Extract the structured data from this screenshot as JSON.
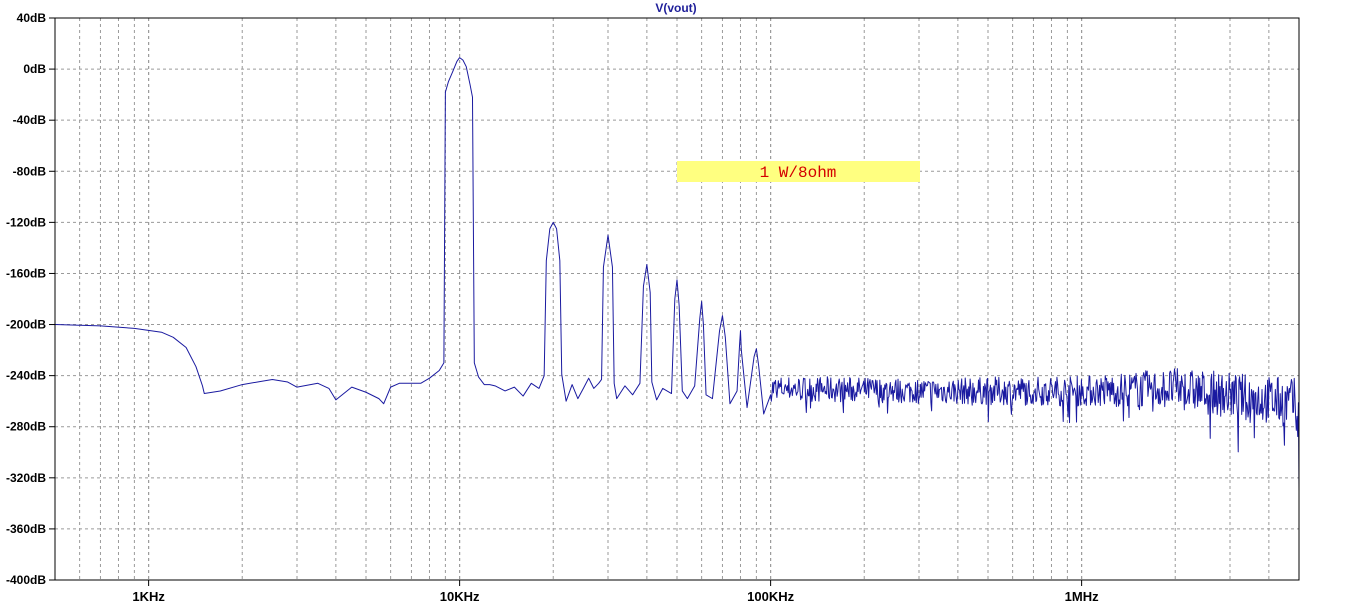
{
  "chart_data": {
    "type": "line",
    "title": "V(vout)",
    "xlabel": "",
    "ylabel": "",
    "x_scale": "log",
    "xlim": [
      500,
      5000000
    ],
    "ylim": [
      -400,
      40
    ],
    "grid": true,
    "y_ticks": [
      {
        "value": 40,
        "label": "40dB"
      },
      {
        "value": 0,
        "label": "0dB"
      },
      {
        "value": -40,
        "label": "-40dB"
      },
      {
        "value": -80,
        "label": "-80dB"
      },
      {
        "value": -120,
        "label": "-120dB"
      },
      {
        "value": -160,
        "label": "-160dB"
      },
      {
        "value": -200,
        "label": "-200dB"
      },
      {
        "value": -240,
        "label": "-240dB"
      },
      {
        "value": -280,
        "label": "-280dB"
      },
      {
        "value": -320,
        "label": "-320dB"
      },
      {
        "value": -360,
        "label": "-360dB"
      },
      {
        "value": -400,
        "label": "-400dB"
      }
    ],
    "x_ticks": [
      {
        "value": 1000,
        "label": "1KHz"
      },
      {
        "value": 10000,
        "label": "10KHz"
      },
      {
        "value": 100000,
        "label": "100KHz"
      },
      {
        "value": 1000000,
        "label": "1MHz"
      }
    ],
    "series": [
      {
        "color": "#1a1aa0",
        "points": [
          [
            500,
            -200
          ],
          [
            700,
            -201
          ],
          [
            900,
            -203
          ],
          [
            1100,
            -206
          ],
          [
            1200,
            -210
          ],
          [
            1320,
            -218
          ],
          [
            1420,
            -233
          ],
          [
            1490,
            -248
          ],
          [
            1510,
            -254
          ],
          [
            1700,
            -252
          ],
          [
            2000,
            -247
          ],
          [
            2500,
            -243
          ],
          [
            2800,
            -245
          ],
          [
            3000,
            -249
          ],
          [
            3500,
            -246
          ],
          [
            3800,
            -250
          ],
          [
            4000,
            -259
          ],
          [
            4500,
            -249
          ],
          [
            5000,
            -253
          ],
          [
            5500,
            -258
          ],
          [
            5700,
            -262
          ],
          [
            6000,
            -249
          ],
          [
            6400,
            -246
          ],
          [
            7000,
            -246
          ],
          [
            7500,
            -246
          ],
          [
            8000,
            -242
          ],
          [
            8600,
            -236
          ],
          [
            8900,
            -230
          ],
          [
            9000,
            -18
          ],
          [
            9200,
            -10
          ],
          [
            9500,
            -2
          ],
          [
            9800,
            6
          ],
          [
            10000,
            9
          ],
          [
            10250,
            7
          ],
          [
            10500,
            2
          ],
          [
            10800,
            -12
          ],
          [
            11000,
            -22
          ],
          [
            11150,
            -230
          ],
          [
            11500,
            -241
          ],
          [
            12000,
            -247
          ],
          [
            12500,
            -247
          ],
          [
            13000,
            -248
          ],
          [
            14000,
            -252
          ],
          [
            15000,
            -249
          ],
          [
            16000,
            -256
          ],
          [
            17000,
            -246
          ],
          [
            18000,
            -250
          ],
          [
            18700,
            -240
          ],
          [
            19000,
            -150
          ],
          [
            19500,
            -125
          ],
          [
            20000,
            -120
          ],
          [
            20500,
            -125
          ],
          [
            21000,
            -150
          ],
          [
            21300,
            -239
          ],
          [
            22000,
            -260
          ],
          [
            23000,
            -247
          ],
          [
            24000,
            -258
          ],
          [
            25000,
            -250
          ],
          [
            26000,
            -242
          ],
          [
            27000,
            -250
          ],
          [
            28000,
            -246
          ],
          [
            28600,
            -243
          ],
          [
            29000,
            -155
          ],
          [
            30000,
            -130
          ],
          [
            31000,
            -155
          ],
          [
            31400,
            -246
          ],
          [
            32000,
            -258
          ],
          [
            34000,
            -248
          ],
          [
            36000,
            -255
          ],
          [
            38000,
            -246
          ],
          [
            39000,
            -170
          ],
          [
            40000,
            -153
          ],
          [
            41000,
            -175
          ],
          [
            41500,
            -245
          ],
          [
            43000,
            -259
          ],
          [
            45000,
            -250
          ],
          [
            48000,
            -254
          ],
          [
            49200,
            -180
          ],
          [
            50000,
            -165
          ],
          [
            50800,
            -185
          ],
          [
            52000,
            -252
          ],
          [
            54000,
            -258
          ],
          [
            57000,
            -248
          ],
          [
            59200,
            -195
          ],
          [
            60000,
            -182
          ],
          [
            60800,
            -200
          ],
          [
            62000,
            -255
          ],
          [
            65000,
            -258
          ],
          [
            68500,
            -205
          ],
          [
            70000,
            -193
          ],
          [
            71500,
            -210
          ],
          [
            74000,
            -262
          ],
          [
            78000,
            -252
          ],
          [
            79500,
            -215
          ],
          [
            80000,
            -205
          ],
          [
            80500,
            -220
          ],
          [
            84000,
            -265
          ],
          [
            88500,
            -225
          ],
          [
            90000,
            -219
          ],
          [
            91500,
            -232
          ],
          [
            95000,
            -270
          ],
          [
            100000,
            -255
          ]
        ],
        "noise_band": [
          {
            "x": 100000,
            "y": -250,
            "spread": 10
          },
          {
            "x": 300000,
            "y": -252,
            "spread": 10
          },
          {
            "x": 1000000,
            "y": -252,
            "spread": 12
          },
          {
            "x": 2000000,
            "y": -250,
            "spread": 16
          },
          {
            "x": 5000000,
            "y": -262,
            "spread": 20
          }
        ]
      }
    ]
  },
  "annotation": {
    "text": "1 W/8ohm",
    "background": "#ffff80",
    "text_color": "#d40000"
  },
  "colors": {
    "trace": "#1a1aa0",
    "grid": "#9a9a9a",
    "frame": "#000000",
    "title": "#1f1f9a"
  }
}
